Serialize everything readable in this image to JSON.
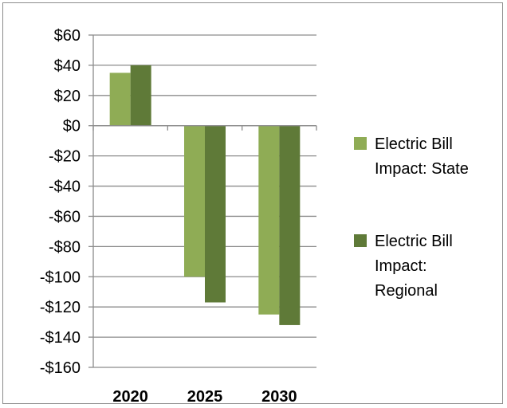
{
  "chart_data": {
    "type": "bar",
    "title": "",
    "xlabel": "",
    "ylabel": "",
    "categories": [
      "2020",
      "2025",
      "2030"
    ],
    "series": [
      {
        "name": "Electric Bill Impact: State",
        "values": [
          35,
          -100,
          -125
        ],
        "color": "#8fac55"
      },
      {
        "name": "Electric Bill Impact: Regional",
        "values": [
          40,
          -117,
          -132
        ],
        "color": "#5f7a38"
      }
    ],
    "ylim": [
      -160,
      60
    ],
    "yticks": [
      60,
      40,
      20,
      0,
      -20,
      -40,
      -60,
      -80,
      -100,
      -120,
      -140,
      -160
    ],
    "ytick_labels": [
      "$60",
      "$40",
      "$20",
      "$0",
      "-$20",
      "-$40",
      "-$60",
      "-$80",
      "-$100",
      "-$120",
      "-$140",
      "-$160"
    ],
    "grid": true,
    "legend_position": "right",
    "legend_lines": [
      [
        "Electric Bill",
        "Impact: State"
      ],
      [
        "Electric Bill",
        "Impact:",
        "Regional"
      ]
    ]
  }
}
